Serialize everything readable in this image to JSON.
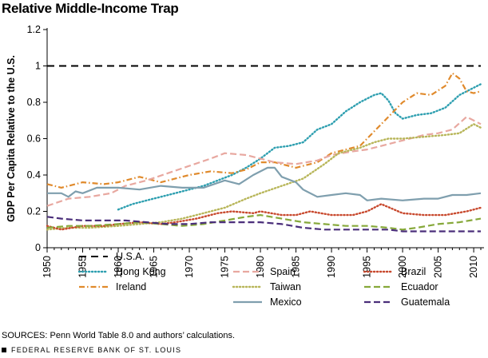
{
  "chart_data": {
    "type": "line",
    "title": "Relative Middle-Income Trap",
    "ylabel": "GDP Per Capita Relative to the U.S.",
    "xlabel": "",
    "xlim": [
      1950,
      2011
    ],
    "ylim": [
      0,
      1.2
    ],
    "x_ticks": [
      1950,
      1955,
      1960,
      1965,
      1970,
      1975,
      1980,
      1985,
      1990,
      1995,
      2000,
      2005,
      2010
    ],
    "y_ticks": [
      0,
      0.2,
      0.4,
      0.6,
      0.8,
      1,
      1.2
    ],
    "y_tick_labels": [
      "0",
      "0.2",
      "0.4",
      "0.6",
      "0.8",
      "1",
      "1.2"
    ],
    "grid": false,
    "legend_position": "bottom",
    "series": [
      {
        "name": "U.S.A.",
        "color": "#000000",
        "style": "dashed",
        "x": [
          1950,
          2011
        ],
        "y": [
          1.0,
          1.0
        ]
      },
      {
        "name": "Hong Kong",
        "color": "#2e9fb0",
        "style": "dotted",
        "x": [
          1960,
          1962,
          1964,
          1966,
          1968,
          1970,
          1972,
          1974,
          1976,
          1978,
          1980,
          1982,
          1984,
          1986,
          1988,
          1990,
          1992,
          1994,
          1996,
          1997,
          1998,
          1999,
          2000,
          2002,
          2004,
          2006,
          2008,
          2010,
          2011
        ],
        "y": [
          0.21,
          0.24,
          0.26,
          0.28,
          0.3,
          0.32,
          0.34,
          0.37,
          0.4,
          0.44,
          0.49,
          0.55,
          0.56,
          0.58,
          0.65,
          0.68,
          0.75,
          0.8,
          0.84,
          0.85,
          0.81,
          0.74,
          0.71,
          0.73,
          0.74,
          0.77,
          0.84,
          0.88,
          0.9
        ]
      },
      {
        "name": "Ireland",
        "color": "#e08a2c",
        "style": "dashdot",
        "x": [
          1950,
          1952,
          1955,
          1958,
          1960,
          1963,
          1966,
          1970,
          1973,
          1976,
          1978,
          1980,
          1982,
          1985,
          1988,
          1990,
          1992,
          1994,
          1996,
          1998,
          2000,
          2002,
          2004,
          2006,
          2007,
          2008,
          2009,
          2010,
          2011
        ],
        "y": [
          0.35,
          0.33,
          0.36,
          0.35,
          0.36,
          0.39,
          0.36,
          0.4,
          0.42,
          0.41,
          0.43,
          0.47,
          0.47,
          0.44,
          0.47,
          0.52,
          0.54,
          0.56,
          0.64,
          0.72,
          0.8,
          0.85,
          0.84,
          0.89,
          0.96,
          0.93,
          0.86,
          0.85,
          0.86
        ]
      },
      {
        "name": "Spain",
        "color": "#e8a8a0",
        "style": "longdash",
        "x": [
          1950,
          1953,
          1956,
          1959,
          1961,
          1964,
          1967,
          1970,
          1973,
          1975,
          1978,
          1980,
          1982,
          1985,
          1988,
          1990,
          1993,
          1995,
          1998,
          2000,
          2003,
          2005,
          2007,
          2009,
          2011
        ],
        "y": [
          0.23,
          0.27,
          0.28,
          0.3,
          0.34,
          0.37,
          0.41,
          0.45,
          0.49,
          0.52,
          0.51,
          0.49,
          0.47,
          0.46,
          0.48,
          0.51,
          0.53,
          0.54,
          0.57,
          0.59,
          0.62,
          0.63,
          0.65,
          0.72,
          0.68
        ]
      },
      {
        "name": "Taiwan",
        "color": "#b8b65a",
        "style": "dotted",
        "x": [
          1950,
          1953,
          1956,
          1960,
          1963,
          1966,
          1969,
          1972,
          1975,
          1978,
          1980,
          1983,
          1986,
          1989,
          1991,
          1994,
          1996,
          1998,
          2000,
          2003,
          2006,
          2008,
          2010,
          2011
        ],
        "y": [
          0.1,
          0.11,
          0.11,
          0.12,
          0.13,
          0.14,
          0.16,
          0.19,
          0.22,
          0.27,
          0.3,
          0.34,
          0.38,
          0.46,
          0.52,
          0.55,
          0.58,
          0.6,
          0.6,
          0.61,
          0.62,
          0.63,
          0.68,
          0.66
        ]
      },
      {
        "name": "Mexico",
        "color": "#7f9fae",
        "style": "solid",
        "x": [
          1950,
          1952,
          1953,
          1954,
          1955,
          1957,
          1960,
          1963,
          1966,
          1969,
          1972,
          1975,
          1977,
          1979,
          1981,
          1982,
          1983,
          1985,
          1986,
          1988,
          1990,
          1992,
          1994,
          1995,
          1997,
          2000,
          2003,
          2005,
          2007,
          2009,
          2011
        ],
        "y": [
          0.3,
          0.3,
          0.28,
          0.31,
          0.3,
          0.33,
          0.33,
          0.32,
          0.34,
          0.33,
          0.33,
          0.37,
          0.35,
          0.4,
          0.44,
          0.44,
          0.39,
          0.36,
          0.32,
          0.28,
          0.29,
          0.3,
          0.29,
          0.26,
          0.27,
          0.26,
          0.27,
          0.27,
          0.29,
          0.29,
          0.3
        ]
      },
      {
        "name": "Brazil",
        "color": "#c8492e",
        "style": "dotted",
        "x": [
          1950,
          1952,
          1955,
          1958,
          1960,
          1963,
          1966,
          1968,
          1971,
          1974,
          1976,
          1979,
          1980,
          1983,
          1985,
          1987,
          1990,
          1993,
          1995,
          1997,
          2000,
          2003,
          2006,
          2009,
          2011
        ],
        "y": [
          0.12,
          0.1,
          0.12,
          0.12,
          0.13,
          0.14,
          0.13,
          0.14,
          0.16,
          0.19,
          0.2,
          0.19,
          0.2,
          0.18,
          0.18,
          0.2,
          0.18,
          0.18,
          0.2,
          0.24,
          0.19,
          0.18,
          0.18,
          0.2,
          0.22
        ]
      },
      {
        "name": "Ecuador",
        "color": "#86a83a",
        "style": "longdash",
        "x": [
          1950,
          1953,
          1956,
          1960,
          1963,
          1966,
          1969,
          1972,
          1975,
          1978,
          1980,
          1983,
          1986,
          1989,
          1992,
          1995,
          1998,
          2000,
          2002,
          2005,
          2008,
          2011
        ],
        "y": [
          0.11,
          0.12,
          0.12,
          0.13,
          0.14,
          0.13,
          0.12,
          0.13,
          0.15,
          0.17,
          0.18,
          0.16,
          0.14,
          0.13,
          0.12,
          0.12,
          0.11,
          0.1,
          0.11,
          0.13,
          0.14,
          0.16
        ]
      },
      {
        "name": "Guatemala",
        "color": "#4a2e7a",
        "style": "longdash",
        "x": [
          1950,
          1952,
          1955,
          1958,
          1961,
          1964,
          1967,
          1970,
          1973,
          1976,
          1980,
          1983,
          1986,
          1989,
          1992,
          1995,
          1998,
          2000,
          2003,
          2006,
          2009,
          2011
        ],
        "y": [
          0.17,
          0.16,
          0.15,
          0.15,
          0.15,
          0.14,
          0.13,
          0.13,
          0.14,
          0.14,
          0.14,
          0.13,
          0.11,
          0.1,
          0.1,
          0.1,
          0.1,
          0.09,
          0.09,
          0.09,
          0.09,
          0.09
        ]
      }
    ]
  },
  "source_text": "SOURCES: Penn World Table 8.0 and authors’ calculations.",
  "footer_text": "FEDERAL RESERVE BANK OF ST. LOUIS"
}
